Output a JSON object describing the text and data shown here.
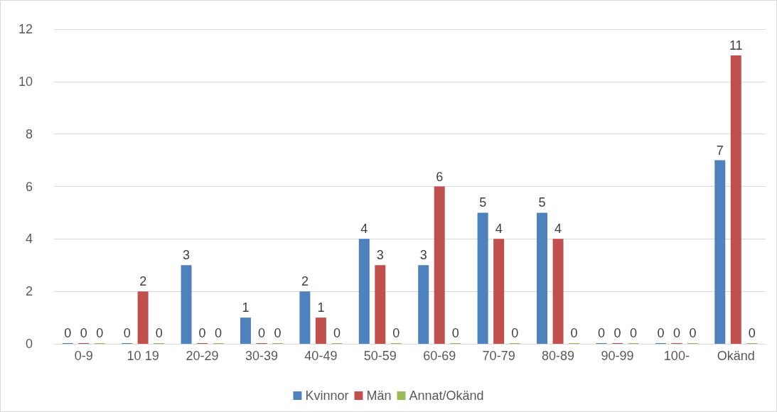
{
  "chart_data": {
    "type": "bar",
    "categories": [
      "0-9",
      "10 19",
      "20-29",
      "30-39",
      "40-49",
      "50-59",
      "60-69",
      "70-79",
      "80-89",
      "90-99",
      "100-",
      "Okänd"
    ],
    "series": [
      {
        "name": "Kvinnor",
        "color": "#4f81bd",
        "values": [
          0,
          0,
          3,
          1,
          2,
          4,
          3,
          5,
          5,
          0,
          0,
          7
        ]
      },
      {
        "name": "Män",
        "color": "#c0504d",
        "values": [
          0,
          2,
          0,
          0,
          1,
          3,
          6,
          4,
          4,
          0,
          0,
          11
        ]
      },
      {
        "name": "Annat/Okänd",
        "color": "#9bbb59",
        "values": [
          0,
          0,
          0,
          0,
          0,
          0,
          0,
          0,
          0,
          0,
          0,
          0
        ]
      }
    ],
    "ylim": [
      0,
      12
    ],
    "yticks": [
      0,
      2,
      4,
      6,
      8,
      10,
      12
    ],
    "grid": "y",
    "legend": "bottom",
    "data_labels": true
  }
}
